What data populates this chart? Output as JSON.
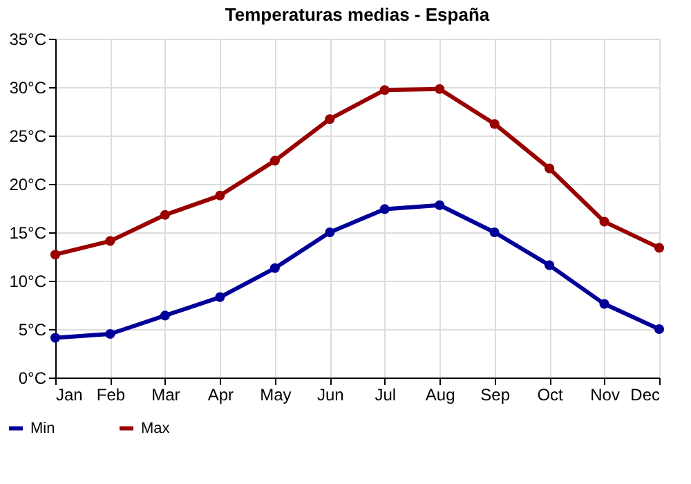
{
  "chart_data": {
    "type": "line",
    "title": "Temperaturas medias - España",
    "categories": [
      "Jan",
      "Feb",
      "Mar",
      "Apr",
      "May",
      "Jun",
      "Jul",
      "Aug",
      "Sep",
      "Oct",
      "Nov",
      "Dec"
    ],
    "series": [
      {
        "name": "Min",
        "color": "#000099",
        "values": [
          4.1,
          4.5,
          6.4,
          8.3,
          11.3,
          15.0,
          17.4,
          17.8,
          15.0,
          11.6,
          7.6,
          5.0
        ]
      },
      {
        "name": "Max",
        "color": "#990000",
        "values": [
          12.7,
          14.1,
          16.8,
          18.8,
          22.4,
          26.7,
          29.7,
          29.8,
          26.2,
          21.6,
          16.1,
          13.4
        ]
      }
    ],
    "ylim": [
      0,
      35
    ],
    "yticks": [
      {
        "value": 0,
        "label": "0°C"
      },
      {
        "value": 5,
        "label": "5°C"
      },
      {
        "value": 10,
        "label": "10°C"
      },
      {
        "value": 15,
        "label": "15°C"
      },
      {
        "value": 20,
        "label": "20°C"
      },
      {
        "value": 25,
        "label": "25°C"
      },
      {
        "value": 30,
        "label": "30°C"
      },
      {
        "value": 35,
        "label": "35°C"
      }
    ],
    "grid": true,
    "legend": "bottom left",
    "marker": "circle",
    "line_style": "solid"
  }
}
